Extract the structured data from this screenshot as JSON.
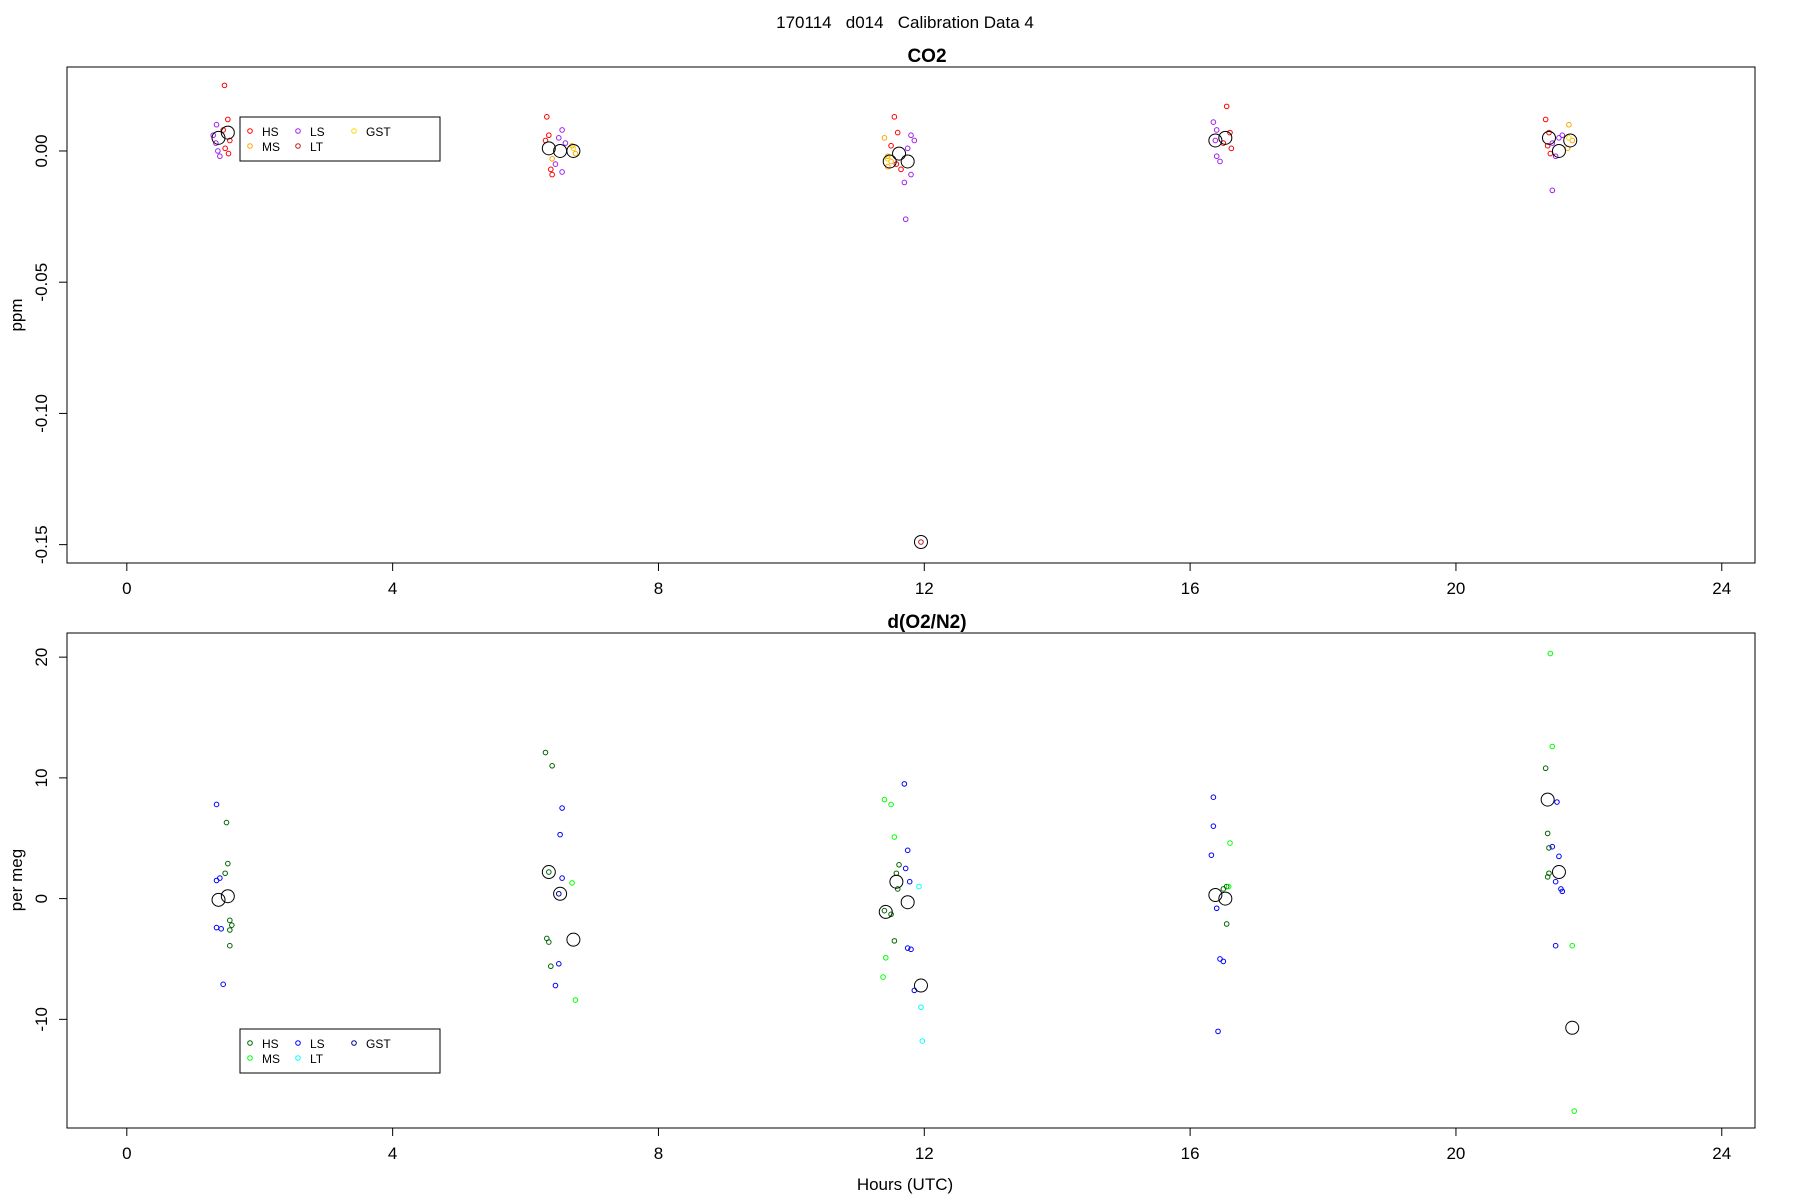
{
  "figure_title": "170114   d014   Calibration Data 4",
  "chart_data": [
    {
      "type": "scatter",
      "title": "CO2",
      "xlabel": "",
      "ylabel": "ppm",
      "xlim": [
        -0.9,
        24.5
      ],
      "ylim": [
        -0.157,
        0.032
      ],
      "x_ticks": [
        0,
        4,
        8,
        12,
        16,
        20,
        24
      ],
      "y_ticks": [
        0.0,
        -0.05,
        -0.1,
        -0.15
      ],
      "y_tick_labels": [
        "0.00",
        "-0.05",
        "-0.10",
        "-0.15"
      ],
      "legend": {
        "position": "top-left",
        "entries": [
          {
            "name": "HS",
            "color": "#ff0000"
          },
          {
            "name": "MS",
            "color": "#ffa500"
          },
          {
            "name": "LS",
            "color": "#a020f0"
          },
          {
            "name": "LT",
            "color": "#b22222"
          },
          {
            "name": "GST",
            "color": "#ffd700"
          }
        ]
      },
      "series": [
        {
          "name": "HS",
          "color": "#ff0000",
          "points": [
            [
              1.47,
              0.025
            ],
            [
              1.52,
              0.012
            ],
            [
              1.45,
              0.008
            ],
            [
              1.55,
              0.004
            ],
            [
              1.48,
              0.001
            ],
            [
              1.53,
              -0.001
            ],
            [
              6.32,
              0.013
            ],
            [
              6.35,
              0.006
            ],
            [
              6.3,
              0.004
            ],
            [
              6.4,
              -0.009
            ],
            [
              6.38,
              -0.007
            ],
            [
              11.55,
              0.013
            ],
            [
              11.6,
              0.007
            ],
            [
              11.5,
              0.002
            ],
            [
              11.65,
              -0.007
            ],
            [
              11.58,
              -0.005
            ],
            [
              16.55,
              0.017
            ],
            [
              16.6,
              0.007
            ],
            [
              16.62,
              0.001
            ],
            [
              16.5,
              0.003
            ],
            [
              21.35,
              0.012
            ],
            [
              21.4,
              0.007
            ],
            [
              21.38,
              0.002
            ],
            [
              21.42,
              -0.001
            ]
          ]
        },
        {
          "name": "MS",
          "color": "#ffa500",
          "points": [
            [
              6.4,
              -0.003
            ],
            [
              6.7,
              0.002
            ],
            [
              6.75,
              -0.001
            ],
            [
              11.4,
              0.005
            ],
            [
              11.45,
              -0.006
            ],
            [
              11.5,
              -0.004
            ],
            [
              11.45,
              -0.002
            ],
            [
              21.7,
              0.01
            ],
            [
              21.75,
              0.004
            ],
            [
              21.68,
              0.001
            ]
          ]
        },
        {
          "name": "LS",
          "color": "#a020f0",
          "points": [
            [
              1.35,
              0.01
            ],
            [
              1.3,
              0.006
            ],
            [
              1.34,
              0.003
            ],
            [
              1.37,
              0.0
            ],
            [
              1.4,
              -0.002
            ],
            [
              6.55,
              0.008
            ],
            [
              6.5,
              0.005
            ],
            [
              6.45,
              -0.005
            ],
            [
              6.55,
              -0.008
            ],
            [
              6.6,
              0.003
            ],
            [
              11.8,
              0.006
            ],
            [
              11.85,
              0.004
            ],
            [
              11.75,
              0.001
            ],
            [
              11.8,
              -0.009
            ],
            [
              11.7,
              -0.012
            ],
            [
              11.72,
              -0.026
            ],
            [
              16.35,
              0.011
            ],
            [
              16.4,
              0.008
            ],
            [
              16.38,
              0.004
            ],
            [
              16.4,
              -0.002
            ],
            [
              16.45,
              -0.004
            ],
            [
              21.45,
              0.003
            ],
            [
              21.5,
              -0.002
            ],
            [
              21.45,
              -0.015
            ],
            [
              21.55,
              0.005
            ],
            [
              21.6,
              0.006
            ]
          ]
        },
        {
          "name": "LT",
          "color": "#b22222",
          "points": [
            [
              11.95,
              -0.149
            ]
          ]
        },
        {
          "name": "GST",
          "color": "#ffd700",
          "points": [
            [
              6.72,
              0.001
            ],
            [
              11.45,
              -0.003
            ],
            [
              21.7,
              0.005
            ]
          ]
        }
      ],
      "means": [
        [
          1.38,
          0.005
        ],
        [
          1.52,
          0.007
        ],
        [
          6.35,
          0.001
        ],
        [
          6.52,
          0.0
        ],
        [
          6.72,
          0.0
        ],
        [
          11.48,
          -0.004
        ],
        [
          11.62,
          -0.001
        ],
        [
          11.75,
          -0.004
        ],
        [
          11.95,
          -0.149
        ],
        [
          16.38,
          0.004
        ],
        [
          16.53,
          0.005
        ],
        [
          21.4,
          0.005
        ],
        [
          21.55,
          0.0
        ],
        [
          21.72,
          0.004
        ]
      ]
    },
    {
      "type": "scatter",
      "title": "d(O2/N2)",
      "xlabel": "Hours (UTC)",
      "ylabel": "per meg",
      "xlim": [
        -0.9,
        24.5
      ],
      "ylim": [
        -19,
        22
      ],
      "x_ticks": [
        0,
        4,
        8,
        12,
        16,
        20,
        24
      ],
      "y_ticks": [
        20,
        10,
        0,
        -10
      ],
      "y_tick_labels": [
        "20",
        "10",
        "0",
        "-10"
      ],
      "legend": {
        "position": "bottom-left",
        "entries": [
          {
            "name": "HS",
            "color": "#006400"
          },
          {
            "name": "MS",
            "color": "#00ff00"
          },
          {
            "name": "LS",
            "color": "#0000ff"
          },
          {
            "name": "LT",
            "color": "#00ffff"
          },
          {
            "name": "GST",
            "color": "#00008b"
          }
        ]
      },
      "series": [
        {
          "name": "HS",
          "color": "#006400",
          "points": [
            [
              1.5,
              6.3
            ],
            [
              1.52,
              2.9
            ],
            [
              1.48,
              2.1
            ],
            [
              1.55,
              -1.8
            ],
            [
              1.58,
              -2.2
            ],
            [
              1.55,
              -2.6
            ],
            [
              1.55,
              -3.9
            ],
            [
              6.3,
              12.1
            ],
            [
              6.4,
              11.0
            ],
            [
              6.35,
              2.2
            ],
            [
              6.32,
              -3.3
            ],
            [
              6.35,
              -3.6
            ],
            [
              6.38,
              -5.6
            ],
            [
              11.4,
              -1.0
            ],
            [
              11.5,
              -1.3
            ],
            [
              11.55,
              -3.5
            ],
            [
              11.58,
              2.1
            ],
            [
              11.6,
              0.8
            ],
            [
              11.62,
              2.8
            ],
            [
              16.5,
              0.8
            ],
            [
              16.55,
              1.0
            ],
            [
              16.55,
              -2.1
            ],
            [
              21.35,
              10.8
            ],
            [
              21.38,
              5.4
            ],
            [
              21.4,
              4.2
            ],
            [
              21.4,
              2.1
            ],
            [
              21.38,
              1.8
            ]
          ]
        },
        {
          "name": "MS",
          "color": "#00ff00",
          "points": [
            [
              6.7,
              1.3
            ],
            [
              6.75,
              -8.4
            ],
            [
              11.4,
              8.2
            ],
            [
              11.5,
              7.8
            ],
            [
              11.55,
              5.1
            ],
            [
              11.42,
              -4.9
            ],
            [
              11.38,
              -6.5
            ],
            [
              16.6,
              4.6
            ],
            [
              16.58,
              1.0
            ],
            [
              21.42,
              20.3
            ],
            [
              21.45,
              12.6
            ],
            [
              21.75,
              -3.9
            ],
            [
              21.78,
              -17.6
            ]
          ]
        },
        {
          "name": "LS",
          "color": "#0000ff",
          "points": [
            [
              1.35,
              7.8
            ],
            [
              1.4,
              1.7
            ],
            [
              1.35,
              1.5
            ],
            [
              1.35,
              -2.4
            ],
            [
              1.42,
              -2.5
            ],
            [
              1.45,
              -7.1
            ],
            [
              6.55,
              7.5
            ],
            [
              6.52,
              5.3
            ],
            [
              6.55,
              1.7
            ],
            [
              6.5,
              -5.4
            ],
            [
              6.45,
              -7.2
            ],
            [
              11.7,
              9.5
            ],
            [
              11.75,
              4.0
            ],
            [
              11.72,
              2.5
            ],
            [
              11.78,
              1.4
            ],
            [
              11.75,
              -4.1
            ],
            [
              11.8,
              -4.2
            ],
            [
              11.85,
              -7.6
            ],
            [
              16.35,
              8.4
            ],
            [
              16.35,
              6.0
            ],
            [
              16.32,
              3.6
            ],
            [
              16.4,
              -0.8
            ],
            [
              16.45,
              -5.0
            ],
            [
              16.5,
              -5.2
            ],
            [
              16.42,
              -11.0
            ],
            [
              21.45,
              4.3
            ],
            [
              21.52,
              8.0
            ],
            [
              21.55,
              3.5
            ],
            [
              21.5,
              1.4
            ],
            [
              21.58,
              0.8
            ],
            [
              21.6,
              0.6
            ],
            [
              21.5,
              -3.9
            ]
          ]
        },
        {
          "name": "LT",
          "color": "#00ffff",
          "points": [
            [
              11.92,
              1.0
            ],
            [
              11.95,
              -9.0
            ],
            [
              11.97,
              -11.8
            ]
          ]
        },
        {
          "name": "GST",
          "color": "#00008b",
          "points": [
            [
              6.5,
              0.4
            ]
          ]
        }
      ],
      "means": [
        [
          1.38,
          -0.1
        ],
        [
          1.52,
          0.2
        ],
        [
          6.35,
          2.2
        ],
        [
          6.52,
          0.4
        ],
        [
          6.72,
          -3.4
        ],
        [
          11.42,
          -1.1
        ],
        [
          11.58,
          1.4
        ],
        [
          11.75,
          -0.3
        ],
        [
          11.95,
          -7.2
        ],
        [
          16.38,
          0.3
        ],
        [
          16.53,
          0.0
        ],
        [
          21.38,
          8.2
        ],
        [
          21.55,
          2.2
        ],
        [
          21.75,
          -10.7
        ]
      ]
    }
  ]
}
